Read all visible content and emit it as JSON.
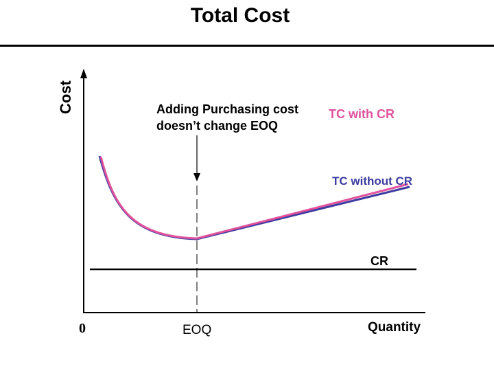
{
  "title": "Total Cost",
  "axes": {
    "y_label": "Cost",
    "x_label": "Quantity",
    "origin_label": "0"
  },
  "annotation": {
    "line1": "Adding Purchasing cost",
    "line2": "doesn’t change EOQ"
  },
  "labels": {
    "tc_with_cr": "TC with CR",
    "tc_without_cr": "TC without CR",
    "cr": "CR",
    "eoq": "EOQ"
  },
  "colors": {
    "tc_with_cr": "#e0529c",
    "tc_without_cr": "#3b3ba0",
    "axes": "#000000"
  }
}
